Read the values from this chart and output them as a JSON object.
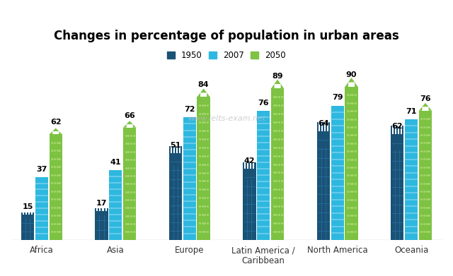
{
  "title": "Changes in percentage of population in urban areas",
  "categories": [
    "Africa",
    "Asia",
    "Europe",
    "Latin America /\nCaribbean",
    "North America",
    "Oceania"
  ],
  "years": [
    "1950",
    "2007",
    "2050"
  ],
  "values": {
    "1950": [
      15,
      17,
      51,
      42,
      64,
      62
    ],
    "2007": [
      37,
      41,
      72,
      76,
      79,
      71
    ],
    "2050": [
      62,
      66,
      84,
      89,
      90,
      76
    ]
  },
  "colors": {
    "1950": "#1a5276",
    "2007": "#2eb8e0",
    "2050": "#7dc242"
  },
  "hatch_colors": {
    "1950": "#2980b9",
    "2007": "#85d4f0",
    "2050": "#a8d870"
  },
  "bar_width": 0.19,
  "figsize": [
    6.4,
    3.91
  ],
  "dpi": 100,
  "ylim": [
    0,
    100
  ],
  "scale": 100,
  "background_color": "#ffffff",
  "watermark": "www.ielts-exam.net"
}
